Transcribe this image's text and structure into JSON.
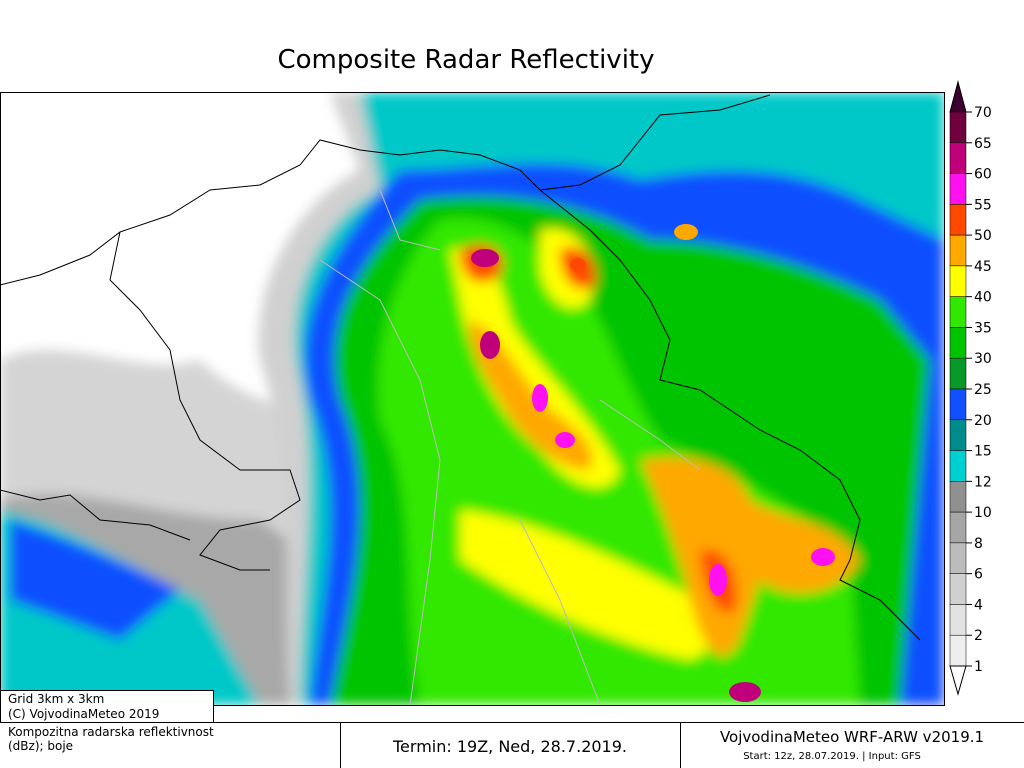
{
  "title": "Composite Radar Reflectivity",
  "colorbar": {
    "labels": [
      70,
      65,
      60,
      55,
      50,
      45,
      40,
      35,
      30,
      25,
      20,
      15,
      12,
      10,
      8,
      6,
      4,
      2,
      1
    ],
    "colors": [
      "#3c0030",
      "#70003e",
      "#c0007a",
      "#ff10f0",
      "#ff4800",
      "#ffa800",
      "#ffff00",
      "#30e800",
      "#00c400",
      "#089a28",
      "#1050ff",
      "#008c8c",
      "#00d0d0",
      "#909090",
      "#a6a6a6",
      "#bcbcbc",
      "#d0d0d0",
      "#e2e2e2",
      "#eeeeee",
      "#ffffff"
    ]
  },
  "footer": {
    "grid": "Grid 3km x 3km",
    "copyright": "(C) VojvodinaMeteo 2019",
    "description_line1": "Kompozitna radarska reflektivnost",
    "description_line2": "(dBz); boje",
    "termin": "Termin: 19Z, Ned, 28.7.2019.",
    "model": "VojvodinaMeteo WRF-ARW v2019.1",
    "start": "Start: 12z, 28.07.2019. | Input: GFS"
  }
}
